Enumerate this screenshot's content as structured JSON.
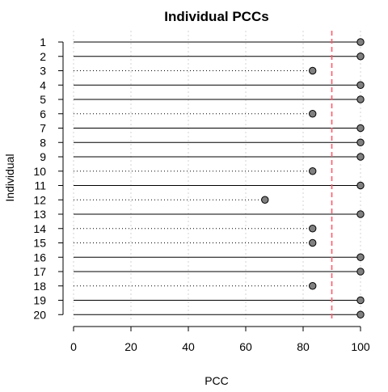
{
  "chart_data": {
    "type": "lollipop",
    "title": "Individual PCCs",
    "xlabel": "PCC",
    "ylabel": "Individual",
    "xlim": [
      0,
      100
    ],
    "x_ticks": [
      0,
      20,
      40,
      60,
      80,
      100
    ],
    "orientation": "horizontal",
    "grid": "vertical dotted",
    "reference_line": {
      "x": 90,
      "color": "#ff5a6a",
      "style": "dashed"
    },
    "marker_color": "#808080",
    "categories": [
      "1",
      "2",
      "3",
      "4",
      "5",
      "6",
      "7",
      "8",
      "9",
      "10",
      "11",
      "12",
      "13",
      "14",
      "15",
      "16",
      "17",
      "18",
      "19",
      "20"
    ],
    "values": [
      100,
      100,
      83.3,
      100,
      100,
      83.3,
      100,
      100,
      100,
      83.3,
      100,
      66.7,
      100,
      83.3,
      83.3,
      100,
      100,
      83.3,
      100,
      100
    ],
    "line_style_rule": "solid when value reaches 100, dotted otherwise"
  }
}
